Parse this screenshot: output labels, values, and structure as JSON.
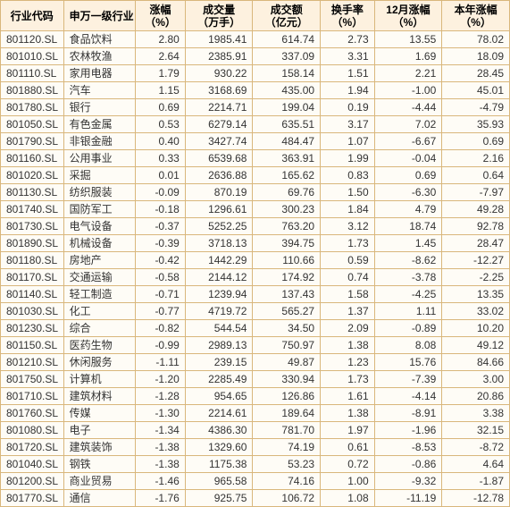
{
  "table": {
    "columns": [
      "行业代码",
      "申万一级行业",
      "涨幅\n（%）",
      "成交量\n（万手）",
      "成交额\n（亿元）",
      "换手率\n（%）",
      "12月涨幅\n（%）",
      "本年涨幅\n（%）"
    ],
    "rows": [
      [
        "801120.SL",
        "食品饮料",
        "2.80",
        "1985.41",
        "614.74",
        "2.73",
        "13.55",
        "78.02"
      ],
      [
        "801010.SL",
        "农林牧渔",
        "2.64",
        "2385.91",
        "337.09",
        "3.31",
        "1.69",
        "18.09"
      ],
      [
        "801110.SL",
        "家用电器",
        "1.79",
        "930.22",
        "158.14",
        "1.51",
        "2.21",
        "28.45"
      ],
      [
        "801880.SL",
        "汽车",
        "1.15",
        "3168.69",
        "435.00",
        "1.94",
        "-1.00",
        "45.01"
      ],
      [
        "801780.SL",
        "银行",
        "0.69",
        "2214.71",
        "199.04",
        "0.19",
        "-4.44",
        "-4.79"
      ],
      [
        "801050.SL",
        "有色金属",
        "0.53",
        "6279.14",
        "635.51",
        "3.17",
        "7.02",
        "35.93"
      ],
      [
        "801790.SL",
        "非银金融",
        "0.40",
        "3427.74",
        "484.47",
        "1.07",
        "-6.67",
        "0.69"
      ],
      [
        "801160.SL",
        "公用事业",
        "0.33",
        "6539.68",
        "363.91",
        "1.99",
        "-0.04",
        "2.16"
      ],
      [
        "801020.SL",
        "采掘",
        "0.01",
        "2636.88",
        "165.62",
        "0.83",
        "0.69",
        "0.64"
      ],
      [
        "801130.SL",
        "纺织服装",
        "-0.09",
        "870.19",
        "69.76",
        "1.50",
        "-6.30",
        "-7.97"
      ],
      [
        "801740.SL",
        "国防军工",
        "-0.18",
        "1296.61",
        "300.23",
        "1.84",
        "4.79",
        "49.28"
      ],
      [
        "801730.SL",
        "电气设备",
        "-0.37",
        "5252.25",
        "763.20",
        "3.12",
        "18.74",
        "92.78"
      ],
      [
        "801890.SL",
        "机械设备",
        "-0.39",
        "3718.13",
        "394.75",
        "1.73",
        "1.45",
        "28.47"
      ],
      [
        "801180.SL",
        "房地产",
        "-0.42",
        "1442.29",
        "110.66",
        "0.59",
        "-8.62",
        "-12.27"
      ],
      [
        "801170.SL",
        "交通运输",
        "-0.58",
        "2144.12",
        "174.92",
        "0.74",
        "-3.78",
        "-2.25"
      ],
      [
        "801140.SL",
        "轻工制造",
        "-0.71",
        "1239.94",
        "137.43",
        "1.58",
        "-4.25",
        "13.35"
      ],
      [
        "801030.SL",
        "化工",
        "-0.77",
        "4719.72",
        "565.27",
        "1.37",
        "1.11",
        "33.02"
      ],
      [
        "801230.SL",
        "综合",
        "-0.82",
        "544.54",
        "34.50",
        "2.09",
        "-0.89",
        "10.20"
      ],
      [
        "801150.SL",
        "医药生物",
        "-0.99",
        "2989.13",
        "750.97",
        "1.38",
        "8.08",
        "49.12"
      ],
      [
        "801210.SL",
        "休闲服务",
        "-1.11",
        "239.15",
        "49.87",
        "1.23",
        "15.76",
        "84.66"
      ],
      [
        "801750.SL",
        "计算机",
        "-1.20",
        "2285.49",
        "330.94",
        "1.73",
        "-7.39",
        "3.00"
      ],
      [
        "801710.SL",
        "建筑材料",
        "-1.28",
        "954.65",
        "126.86",
        "1.61",
        "-4.14",
        "20.86"
      ],
      [
        "801760.SL",
        "传媒",
        "-1.30",
        "2214.61",
        "189.64",
        "1.38",
        "-8.91",
        "3.38"
      ],
      [
        "801080.SL",
        "电子",
        "-1.34",
        "4386.30",
        "781.70",
        "1.97",
        "-1.96",
        "32.15"
      ],
      [
        "801720.SL",
        "建筑装饰",
        "-1.38",
        "1329.60",
        "74.19",
        "0.61",
        "-8.53",
        "-8.72"
      ],
      [
        "801040.SL",
        "钢铁",
        "-1.38",
        "1175.38",
        "53.23",
        "0.72",
        "-0.86",
        "4.64"
      ],
      [
        "801200.SL",
        "商业贸易",
        "-1.46",
        "965.58",
        "74.16",
        "1.00",
        "-9.32",
        "-1.87"
      ],
      [
        "801770.SL",
        "通信",
        "-1.76",
        "925.75",
        "106.72",
        "1.08",
        "-11.19",
        "-12.78"
      ]
    ],
    "header_bg": "#fdf1df",
    "cell_bg": "#fefcf6",
    "border_color": "#d9b77c"
  }
}
